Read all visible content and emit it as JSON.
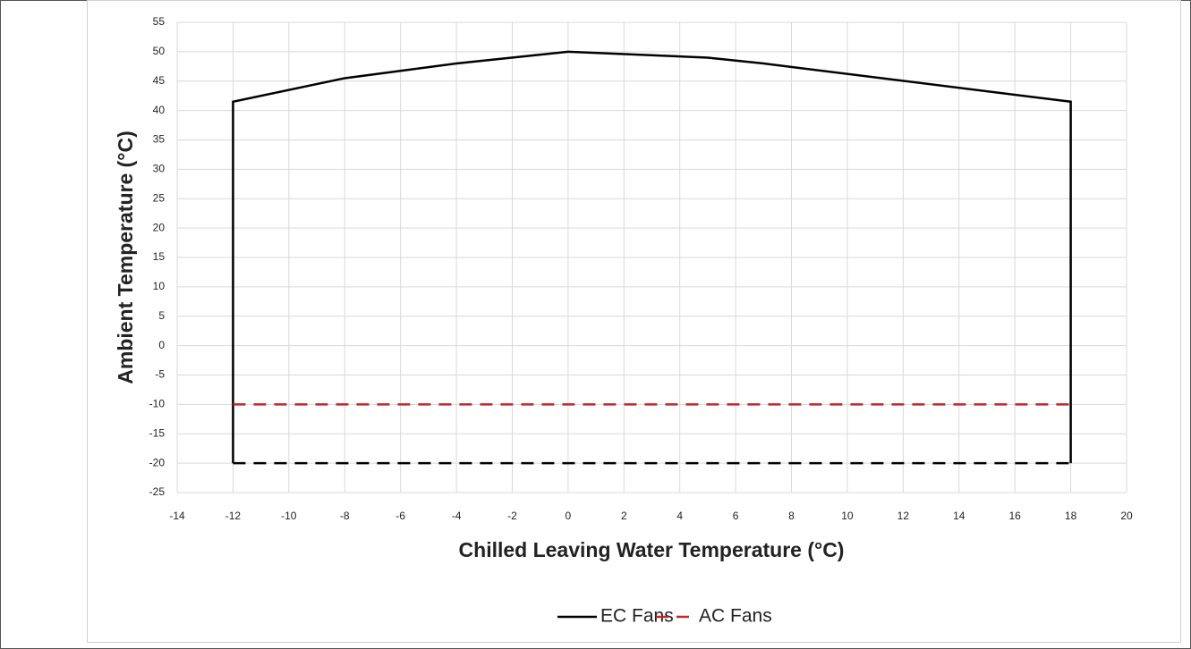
{
  "chart_data": {
    "type": "line",
    "xlabel": "Chilled Leaving Water Temperature (°C)",
    "ylabel": "Ambient Temperature (°C)",
    "xlim": [
      -14,
      20
    ],
    "xticks": [
      -14,
      -12,
      -10,
      -8,
      -6,
      -4,
      -2,
      0,
      2,
      4,
      6,
      8,
      10,
      12,
      14,
      16,
      18,
      20
    ],
    "ylim": [
      -25,
      55
    ],
    "yticks": [
      -25,
      -20,
      -15,
      -10,
      -5,
      0,
      5,
      10,
      15,
      20,
      25,
      30,
      35,
      40,
      45,
      50,
      55
    ],
    "grid": true,
    "legend": "bottom",
    "series": [
      {
        "name": "EC Fans",
        "color": "#000000",
        "dashed": false,
        "x": [
          -12,
          -12,
          -8,
          -4,
          0,
          5,
          7,
          18,
          18
        ],
        "values": [
          -20,
          41.5,
          45.5,
          48,
          50,
          49,
          48,
          41.5,
          -20
        ]
      },
      {
        "color": "#000000",
        "dashed": true,
        "x": [
          -12,
          18
        ],
        "values": [
          -20,
          -20
        ]
      },
      {
        "name": "AC Fans",
        "color": "#c0272d",
        "dashed": true,
        "x": [
          -12,
          18
        ],
        "values": [
          -10,
          -10
        ]
      }
    ]
  }
}
